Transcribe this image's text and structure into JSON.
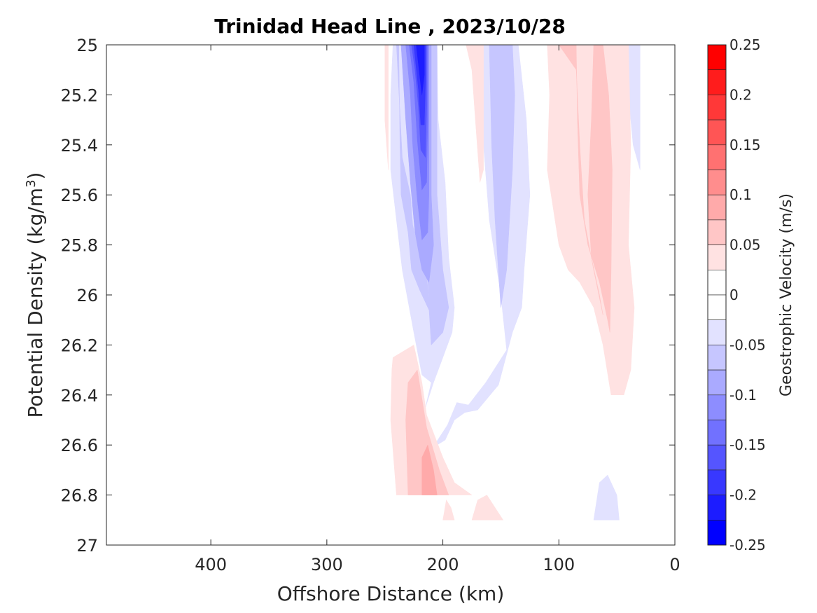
{
  "chart_data": {
    "type": "heatmap",
    "subtype": "filled-contour",
    "title": "Trinidad Head Line , 2023/10/28",
    "xlabel": "Offshore Distance (km)",
    "ylabel_main": "Potential Density (kg/m",
    "ylabel_sup": "3",
    "ylabel_end": ")",
    "xlim": [
      490,
      0
    ],
    "x_reversed": true,
    "ylim": [
      25,
      27
    ],
    "y_reversed": true,
    "x_ticks": [
      400,
      300,
      200,
      100,
      0
    ],
    "y_ticks": [
      25,
      25.2,
      25.4,
      25.6,
      25.8,
      26,
      26.2,
      26.4,
      26.6,
      26.8,
      27
    ],
    "y_tick_labels": [
      "25",
      "25.2",
      "25.4",
      "25.6",
      "25.8",
      "26",
      "26.2",
      "26.4",
      "26.6",
      "26.8",
      "27"
    ],
    "x_tick_labels": [
      "400",
      "300",
      "200",
      "100",
      "0"
    ],
    "colorbar": {
      "label": "Geostrophic Velocity (m/s)",
      "limits": [
        -0.25,
        0.25
      ],
      "tick_values": [
        0.25,
        0.2,
        0.15,
        0.1,
        0.05,
        0,
        -0.05,
        -0.1,
        -0.15,
        -0.2,
        -0.25
      ],
      "tick_labels": [
        "0.25",
        "0.2",
        "0.15",
        "0.1",
        "0.05",
        "0",
        "-0.05",
        "-0.1",
        "-0.15",
        "-0.2",
        "-0.25"
      ],
      "levels": [
        {
          "from": 0.225,
          "to": 0.25,
          "color": "#ff0000"
        },
        {
          "from": 0.2,
          "to": 0.225,
          "color": "#ff1c1c"
        },
        {
          "from": 0.175,
          "to": 0.2,
          "color": "#ff3838"
        },
        {
          "from": 0.15,
          "to": 0.175,
          "color": "#ff5555"
        },
        {
          "from": 0.125,
          "to": 0.15,
          "color": "#ff7171"
        },
        {
          "from": 0.1,
          "to": 0.125,
          "color": "#ff8d8d"
        },
        {
          "from": 0.075,
          "to": 0.1,
          "color": "#ffaaaa"
        },
        {
          "from": 0.05,
          "to": 0.075,
          "color": "#ffc6c6"
        },
        {
          "from": 0.025,
          "to": 0.05,
          "color": "#ffe2e2"
        },
        {
          "from": 0,
          "to": 0.025,
          "color": "#ffffff"
        },
        {
          "from": -0.025,
          "to": 0,
          "color": "#ffffff"
        },
        {
          "from": -0.05,
          "to": -0.025,
          "color": "#e2e2ff"
        },
        {
          "from": -0.075,
          "to": -0.05,
          "color": "#c6c6ff"
        },
        {
          "from": -0.1,
          "to": -0.075,
          "color": "#aaaaff"
        },
        {
          "from": -0.125,
          "to": -0.1,
          "color": "#8d8dff"
        },
        {
          "from": -0.15,
          "to": -0.125,
          "color": "#7171ff"
        },
        {
          "from": -0.175,
          "to": -0.15,
          "color": "#5555ff"
        },
        {
          "from": -0.2,
          "to": -0.175,
          "color": "#3838ff"
        },
        {
          "from": -0.225,
          "to": -0.2,
          "color": "#1c1cff"
        },
        {
          "from": -0.25,
          "to": -0.225,
          "color": "#0000ff"
        }
      ]
    },
    "contour_regions": [
      {
        "name": "southward-jet-weak",
        "level": -0.0375,
        "color": "#e2e2ff",
        "points": [
          [
            243,
            25
          ],
          [
            205,
            25
          ],
          [
            204,
            25.3
          ],
          [
            198,
            25.55
          ],
          [
            195,
            25.85
          ],
          [
            190,
            26.05
          ],
          [
            192,
            26.15
          ],
          [
            200,
            26.25
          ],
          [
            208,
            26.35
          ],
          [
            215,
            26.45
          ],
          [
            220,
            26.55
          ],
          [
            210,
            26.62
          ],
          [
            196,
            26.52
          ],
          [
            188,
            26.43
          ],
          [
            178,
            26.44
          ],
          [
            163,
            26.35
          ],
          [
            145,
            26.22
          ],
          [
            150,
            26.0
          ],
          [
            160,
            25.7
          ],
          [
            165,
            25.4
          ],
          [
            168,
            25.2
          ],
          [
            175,
            25
          ],
          [
            160,
            25
          ],
          [
            150,
            25
          ],
          [
            135,
            25
          ],
          [
            128,
            25.3
          ],
          [
            125,
            25.6
          ],
          [
            130,
            25.9
          ],
          [
            132,
            26.05
          ],
          [
            140,
            26.15
          ],
          [
            152,
            26.36
          ],
          [
            170,
            26.46
          ],
          [
            181,
            26.47
          ],
          [
            190,
            26.5
          ],
          [
            198,
            26.58
          ],
          [
            205,
            26.6
          ],
          [
            215,
            26.55
          ],
          [
            215,
            26.45
          ],
          [
            210,
            26.35
          ],
          [
            218,
            26.32
          ],
          [
            225,
            26.15
          ],
          [
            235,
            25.9
          ],
          [
            245,
            25.5
          ],
          [
            245,
            25.2
          ]
        ]
      },
      {
        "name": "southward-jet-band-2",
        "level": -0.0625,
        "color": "#c6c6ff",
        "points": [
          [
            240,
            25
          ],
          [
            205,
            25
          ],
          [
            205,
            25.3
          ],
          [
            205,
            25.6
          ],
          [
            200,
            25.9
          ],
          [
            195,
            26.05
          ],
          [
            200,
            26.15
          ],
          [
            210,
            26.2
          ],
          [
            212,
            26.05
          ],
          [
            215,
            25.7
          ],
          [
            220,
            25.4
          ],
          [
            228,
            25.2
          ],
          [
            230,
            25
          ],
          [
            238,
            25
          ],
          [
            237,
            25.4
          ],
          [
            236,
            25.6
          ],
          [
            230,
            25.75
          ],
          [
            227,
            25.9
          ],
          [
            220,
            25.98
          ],
          [
            212,
            26.06
          ],
          [
            214,
            25.9
          ],
          [
            221,
            25.82
          ],
          [
            226,
            25.72
          ],
          [
            228,
            25.6
          ],
          [
            235,
            25.45
          ]
        ]
      },
      {
        "name": "southward-jet-band-3",
        "level": -0.0875,
        "color": "#aaaaff",
        "points": [
          [
            236,
            25
          ],
          [
            210,
            25
          ],
          [
            210,
            25.3
          ],
          [
            210,
            25.6
          ],
          [
            208,
            25.8
          ],
          [
            212,
            25.95
          ],
          [
            218,
            25.9
          ],
          [
            224,
            25.75
          ],
          [
            228,
            25.55
          ],
          [
            232,
            25.3
          ]
        ]
      },
      {
        "name": "southward-jet-band-4",
        "level": -0.1125,
        "color": "#8d8dff",
        "points": [
          [
            232,
            25
          ],
          [
            212,
            25
          ],
          [
            212,
            25.3
          ],
          [
            212,
            25.6
          ],
          [
            213,
            25.75
          ],
          [
            218,
            25.78
          ],
          [
            222,
            25.62
          ],
          [
            226,
            25.4
          ],
          [
            228,
            25.2
          ]
        ]
      },
      {
        "name": "southward-jet-band-5",
        "level": -0.1375,
        "color": "#7171ff",
        "points": [
          [
            229,
            25
          ],
          [
            213,
            25
          ],
          [
            213,
            25.3
          ],
          [
            214,
            25.55
          ],
          [
            218,
            25.58
          ],
          [
            222,
            25.38
          ],
          [
            225,
            25.15
          ]
        ]
      },
      {
        "name": "southward-jet-band-6",
        "level": -0.1625,
        "color": "#5555ff",
        "points": [
          [
            227,
            25
          ],
          [
            214,
            25
          ],
          [
            214,
            25.25
          ],
          [
            215,
            25.45
          ],
          [
            219,
            25.42
          ],
          [
            221,
            25.25
          ],
          [
            224,
            25.1
          ]
        ]
      },
      {
        "name": "southward-jet-band-7",
        "level": -0.1875,
        "color": "#3838ff",
        "points": [
          [
            225,
            25
          ],
          [
            215,
            25
          ],
          [
            215,
            25.15
          ],
          [
            216,
            25.32
          ],
          [
            219,
            25.32
          ],
          [
            221,
            25.18
          ]
        ]
      },
      {
        "name": "southward-jet-core",
        "level": -0.2125,
        "color": "#1c1cff",
        "points": [
          [
            223,
            25
          ],
          [
            216,
            25
          ],
          [
            216,
            25.12
          ],
          [
            218,
            25.2
          ],
          [
            220,
            25.12
          ]
        ]
      },
      {
        "name": "mid-southward-band-1",
        "level": -0.0625,
        "color": "#c6c6ff",
        "points": [
          [
            160,
            25
          ],
          [
            140,
            25
          ],
          [
            138,
            25.2
          ],
          [
            140,
            25.5
          ],
          [
            145,
            25.9
          ],
          [
            150,
            26.05
          ],
          [
            155,
            25.7
          ],
          [
            158,
            25.4
          ]
        ]
      },
      {
        "name": "nearshore-southward-weak",
        "level": -0.0375,
        "color": "#e2e2ff",
        "points": [
          [
            40,
            25
          ],
          [
            30,
            25
          ],
          [
            30,
            25.1
          ],
          [
            30,
            25.5
          ],
          [
            36,
            25.4
          ],
          [
            40,
            25.2
          ]
        ]
      },
      {
        "name": "deep-southward-weak",
        "level": -0.0375,
        "color": "#e2e2ff",
        "points": [
          [
            70,
            26.9
          ],
          [
            65,
            26.75
          ],
          [
            58,
            26.72
          ],
          [
            50,
            26.8
          ],
          [
            48,
            26.9
          ]
        ]
      },
      {
        "name": "offshore-northward-weak",
        "level": 0.0375,
        "color": "#ffe2e2",
        "points": [
          [
            250,
            25
          ],
          [
            247,
            25
          ],
          [
            247,
            25.5
          ],
          [
            250,
            25.3
          ]
        ]
      },
      {
        "name": "northward-deep-weak",
        "level": 0.0375,
        "color": "#ffe2e2",
        "points": [
          [
            240,
            26.8
          ],
          [
            245,
            26.5
          ],
          [
            244,
            26.3
          ],
          [
            243,
            26.25
          ],
          [
            225,
            26.2
          ],
          [
            218,
            26.35
          ],
          [
            214,
            26.48
          ],
          [
            200,
            26.65
          ],
          [
            190,
            26.75
          ],
          [
            175,
            26.8
          ],
          [
            195,
            26.8
          ]
        ]
      },
      {
        "name": "northward-deep-band-2",
        "level": 0.0625,
        "color": "#ffc6c6",
        "points": [
          [
            230,
            26.8
          ],
          [
            232,
            26.5
          ],
          [
            230,
            26.35
          ],
          [
            222,
            26.3
          ],
          [
            214,
            26.53
          ],
          [
            203,
            26.7
          ],
          [
            195,
            26.8
          ]
        ]
      },
      {
        "name": "northward-deep-band-3",
        "level": 0.0875,
        "color": "#ffaaaa",
        "points": [
          [
            218,
            26.8
          ],
          [
            218,
            26.65
          ],
          [
            213,
            26.6
          ],
          [
            208,
            26.7
          ],
          [
            205,
            26.8
          ]
        ]
      },
      {
        "name": "upper-northward-weak",
        "level": 0.0375,
        "color": "#ffe2e2",
        "points": [
          [
            180,
            25
          ],
          [
            165,
            25
          ],
          [
            165,
            25.3
          ],
          [
            165,
            25.5
          ],
          [
            168,
            25.55
          ],
          [
            172,
            25.3
          ],
          [
            175,
            25.1
          ]
        ]
      },
      {
        "name": "nearshore-northward-weak",
        "level": 0.0375,
        "color": "#ffe2e2",
        "points": [
          [
            110,
            25
          ],
          [
            40,
            25
          ],
          [
            38,
            25.4
          ],
          [
            40,
            25.8
          ],
          [
            35,
            26.05
          ],
          [
            38,
            26.3
          ],
          [
            44,
            26.4
          ],
          [
            55,
            26.4
          ],
          [
            62,
            26.2
          ],
          [
            70,
            26.05
          ],
          [
            82,
            25.95
          ],
          [
            92,
            25.9
          ],
          [
            100,
            25.8
          ],
          [
            110,
            25.5
          ],
          [
            108,
            25.2
          ]
        ]
      },
      {
        "name": "nearshore-northward-band-2",
        "level": 0.0625,
        "color": "#ffc6c6",
        "points": [
          [
            100,
            25
          ],
          [
            85,
            25
          ],
          [
            84,
            25.3
          ],
          [
            82,
            25.6
          ],
          [
            75,
            25.8
          ],
          [
            65,
            25.95
          ],
          [
            58,
            26.1
          ],
          [
            56,
            26.15
          ],
          [
            55,
            25.9
          ],
          [
            54,
            25.5
          ],
          [
            57,
            25.2
          ],
          [
            62,
            25
          ],
          [
            70,
            25
          ],
          [
            72,
            25.3
          ],
          [
            75,
            25.6
          ],
          [
            72,
            25.85
          ],
          [
            65,
            26.0
          ],
          [
            62,
            26.08
          ],
          [
            70,
            25.9
          ],
          [
            78,
            25.7
          ],
          [
            82,
            25.4
          ],
          [
            85,
            25.1
          ]
        ]
      },
      {
        "name": "deep-northward-weak",
        "level": 0.0375,
        "color": "#ffe2e2",
        "points": [
          [
            175,
            26.9
          ],
          [
            170,
            26.82
          ],
          [
            162,
            26.8
          ],
          [
            155,
            26.85
          ],
          [
            148,
            26.9
          ]
        ]
      },
      {
        "name": "deep-northward-small",
        "level": 0.0375,
        "color": "#ffe2e2",
        "points": [
          [
            200,
            26.9
          ],
          [
            197,
            26.82
          ],
          [
            193,
            26.85
          ],
          [
            190,
            26.9
          ]
        ]
      }
    ]
  }
}
